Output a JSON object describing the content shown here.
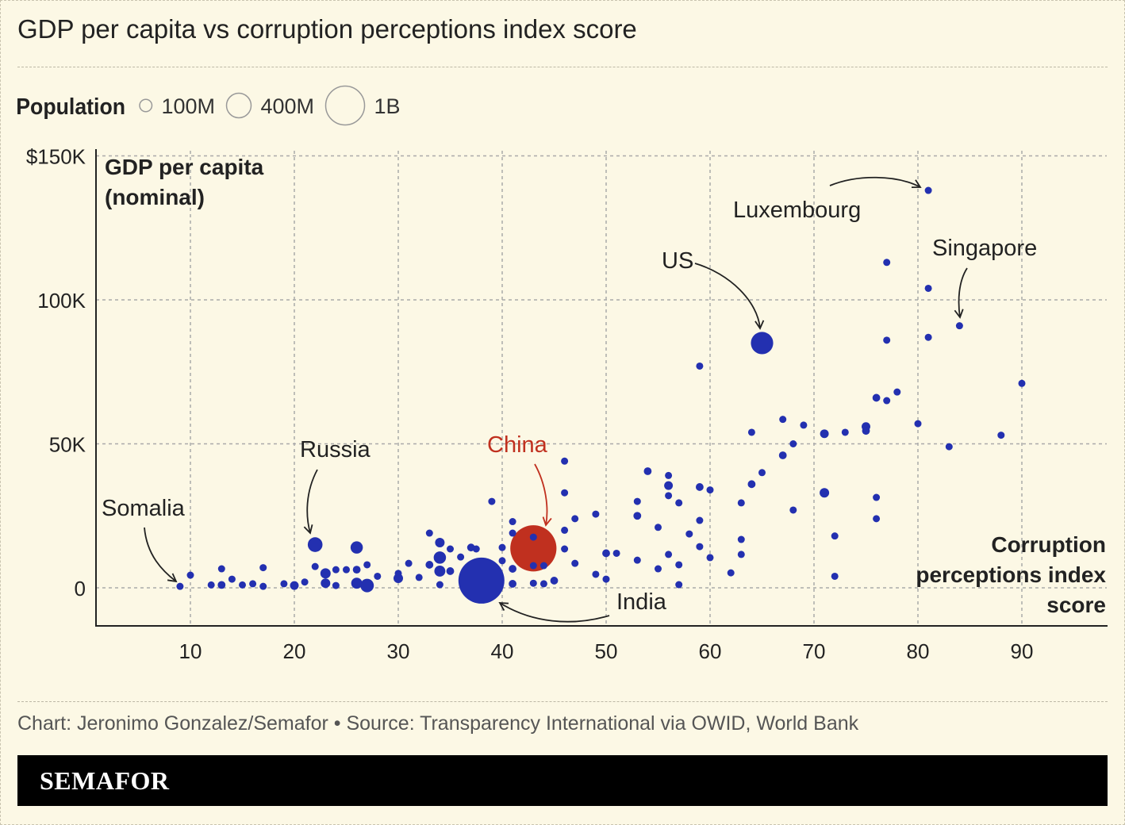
{
  "title": "GDP per capita vs corruption perceptions index score",
  "source": "Chart: Jeronimo Gonzalez/Semafor • Source: Transparency International via OWID, World Bank",
  "brand": "SEMAFOR",
  "colors": {
    "background": "#fcf8e5",
    "points": "#2330b0",
    "highlight": "#c0301f"
  },
  "legend": {
    "title": "Population",
    "items": [
      {
        "label": "100M",
        "value": 100
      },
      {
        "label": "400M",
        "value": 400
      },
      {
        "label": "1B",
        "value": 1000
      }
    ]
  },
  "chart_data": {
    "type": "scatter",
    "xlabel": "Corruption perceptions index score",
    "ylabel": "GDP per capita (nominal)",
    "xlim": [
      0,
      98
    ],
    "ylim": [
      -13,
      152
    ],
    "xticks": [
      {
        "value": 10,
        "label": "10"
      },
      {
        "value": 20,
        "label": "20"
      },
      {
        "value": 30,
        "label": "30"
      },
      {
        "value": 40,
        "label": "40"
      },
      {
        "value": 50,
        "label": "50"
      },
      {
        "value": 60,
        "label": "60"
      },
      {
        "value": 70,
        "label": "70"
      },
      {
        "value": 80,
        "label": "80"
      },
      {
        "value": 90,
        "label": "90"
      }
    ],
    "yticks": [
      {
        "value": 0,
        "label": "0"
      },
      {
        "value": 50,
        "label": "50K"
      },
      {
        "value": 100,
        "label": "100K"
      },
      {
        "value": 150,
        "label": "$150K"
      }
    ],
    "grid": true,
    "size_encoding": "population (millions)",
    "annotations": [
      {
        "label": "Somalia",
        "x": 9,
        "y": 0.5
      },
      {
        "label": "Russia",
        "x": 22,
        "y": 15
      },
      {
        "label": "China",
        "x": 43,
        "y": 13.7,
        "highlight": true
      },
      {
        "label": "India",
        "x": 38,
        "y": 2.5
      },
      {
        "label": "US",
        "x": 65,
        "y": 85
      },
      {
        "label": "Luxembourg",
        "x": 81,
        "y": 138
      },
      {
        "label": "Singapore",
        "x": 84,
        "y": 91
      }
    ],
    "points": [
      [
        9,
        0.5,
        17
      ],
      [
        10,
        4.4,
        30
      ],
      [
        12,
        1,
        30
      ],
      [
        13,
        1,
        40
      ],
      [
        13,
        6.6,
        20
      ],
      [
        14,
        3,
        20
      ],
      [
        15,
        1,
        30
      ],
      [
        16,
        1.4,
        30
      ],
      [
        17,
        0.5,
        30
      ],
      [
        17,
        7,
        15
      ],
      [
        19,
        1.4,
        20
      ],
      [
        20,
        0.8,
        50
      ],
      [
        21,
        2,
        30
      ],
      [
        22,
        15,
        144
      ],
      [
        22,
        7.4,
        20
      ],
      [
        23,
        5,
        70
      ],
      [
        23,
        1.6,
        60
      ],
      [
        24,
        6.3,
        20
      ],
      [
        24,
        0.8,
        30
      ],
      [
        25,
        6.3,
        20
      ],
      [
        26,
        14,
        100
      ],
      [
        26,
        6.3,
        40
      ],
      [
        26,
        1.6,
        80
      ],
      [
        27,
        0.8,
        120
      ],
      [
        27,
        8,
        20
      ],
      [
        28,
        4,
        20
      ],
      [
        30,
        3.3,
        60
      ],
      [
        30,
        5,
        20
      ],
      [
        31,
        8.5,
        30
      ],
      [
        32,
        3.6,
        30
      ],
      [
        33,
        19,
        20
      ],
      [
        33,
        8,
        40
      ],
      [
        34,
        15.7,
        60
      ],
      [
        34,
        10.5,
        100
      ],
      [
        34,
        5.8,
        80
      ],
      [
        34,
        1.1,
        30
      ],
      [
        35,
        13.5,
        30
      ],
      [
        35,
        5.8,
        40
      ],
      [
        36,
        10.7,
        20
      ],
      [
        37,
        14,
        40
      ],
      [
        37.5,
        13.5,
        30
      ],
      [
        38,
        2.5,
        1400
      ],
      [
        39,
        30,
        20
      ],
      [
        40,
        14,
        30
      ],
      [
        40,
        9.4,
        20
      ],
      [
        41,
        23,
        30
      ],
      [
        41,
        19,
        20
      ],
      [
        41,
        6.6,
        40
      ],
      [
        41,
        1.4,
        40
      ],
      [
        43,
        13.7,
        1410
      ],
      [
        43,
        17.6,
        20
      ],
      [
        43,
        7.7,
        20
      ],
      [
        43,
        1.6,
        20
      ],
      [
        44,
        1.4,
        30
      ],
      [
        44,
        7.7,
        20
      ],
      [
        45,
        2.5,
        40
      ],
      [
        46,
        44,
        20
      ],
      [
        46,
        33,
        20
      ],
      [
        46,
        20,
        20
      ],
      [
        46,
        13.5,
        20
      ],
      [
        47,
        24,
        20
      ],
      [
        47,
        8.5,
        20
      ],
      [
        49,
        25.6,
        20
      ],
      [
        49,
        4.7,
        20
      ],
      [
        50,
        12,
        40
      ],
      [
        51,
        12,
        20
      ],
      [
        50,
        3,
        20
      ],
      [
        53,
        30,
        20
      ],
      [
        53,
        25,
        40
      ],
      [
        53,
        9.6,
        20
      ],
      [
        54,
        40.5,
        40
      ],
      [
        55,
        21,
        20
      ],
      [
        55,
        6.6,
        20
      ],
      [
        56,
        39,
        20
      ],
      [
        56,
        35.5,
        50
      ],
      [
        56,
        32,
        20
      ],
      [
        57,
        29.5,
        20
      ],
      [
        56,
        11.6,
        20
      ],
      [
        57,
        8,
        20
      ],
      [
        57,
        1.1,
        20
      ],
      [
        58,
        18.7,
        20
      ],
      [
        59,
        77,
        20
      ],
      [
        59,
        35,
        40
      ],
      [
        59,
        23.4,
        20
      ],
      [
        59,
        14.3,
        20
      ],
      [
        60,
        34,
        20
      ],
      [
        60,
        10.5,
        20
      ],
      [
        62,
        5.2,
        20
      ],
      [
        63,
        29.5,
        20
      ],
      [
        63,
        16.8,
        30
      ],
      [
        63,
        11.6,
        20
      ],
      [
        64,
        54,
        20
      ],
      [
        64,
        36,
        40
      ],
      [
        65,
        85,
        330
      ],
      [
        65,
        40,
        20
      ],
      [
        67,
        58.5,
        20
      ],
      [
        67,
        46,
        40
      ],
      [
        68,
        50,
        20
      ],
      [
        68,
        27,
        20
      ],
      [
        69,
        56.5,
        20
      ],
      [
        71,
        53.5,
        50
      ],
      [
        71,
        33,
        60
      ],
      [
        72,
        18,
        20
      ],
      [
        72,
        4,
        20
      ],
      [
        73,
        54,
        20
      ],
      [
        75,
        56,
        50
      ],
      [
        75,
        54.5,
        40
      ],
      [
        76,
        66,
        40
      ],
      [
        76,
        31.4,
        20
      ],
      [
        76,
        24,
        20
      ],
      [
        77,
        113,
        20
      ],
      [
        77,
        86,
        20
      ],
      [
        77,
        65,
        20
      ],
      [
        78,
        68,
        20
      ],
      [
        80,
        57,
        20
      ],
      [
        81,
        138,
        20
      ],
      [
        81,
        104,
        20
      ],
      [
        81,
        87,
        20
      ],
      [
        83,
        49,
        20
      ],
      [
        84,
        91,
        20
      ],
      [
        88,
        53,
        20
      ],
      [
        90,
        71,
        20
      ]
    ]
  }
}
